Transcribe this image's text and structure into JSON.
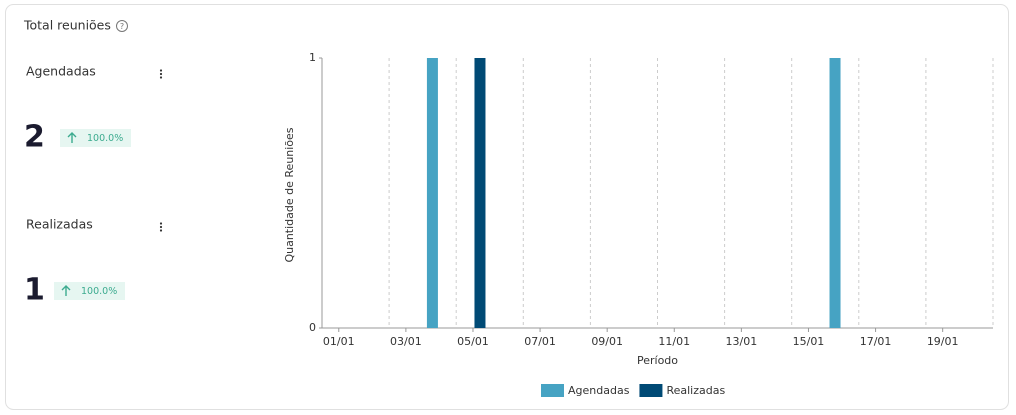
{
  "title": "Total reuniões",
  "kpis": [
    {
      "label": "Agendadas",
      "value": 2,
      "change": "100.0%"
    },
    {
      "label": "Realizadas",
      "value": 1,
      "change": "100.0%"
    }
  ],
  "chart_data": {
    "type": "bar",
    "y_label": "Quantidade de Reuniões",
    "x_label": "Período",
    "categories": [
      "01/01",
      null,
      "03/01",
      null,
      "05/01",
      null,
      "07/01",
      null,
      "09/01",
      null,
      "11/01",
      null,
      "13/01",
      null,
      "15/01",
      null,
      "17/01",
      null,
      "19/01",
      null
    ],
    "series": [
      {
        "name": "Agendadas",
        "color": "#46a3c3",
        "values": [
          0,
          0,
          0,
          1,
          0,
          0,
          0,
          0,
          0,
          0,
          0,
          0,
          0,
          0,
          0,
          1,
          0,
          0,
          0,
          0
        ]
      },
      {
        "name": "Realizadas",
        "color": "#004a75",
        "values": [
          0,
          0,
          0,
          0,
          1,
          0,
          0,
          0,
          0,
          0,
          0,
          0,
          0,
          0,
          0,
          0,
          0,
          0,
          0,
          0
        ]
      }
    ],
    "ylim": [
      0,
      1
    ],
    "yticks": [
      0,
      1
    ],
    "grid": true
  }
}
